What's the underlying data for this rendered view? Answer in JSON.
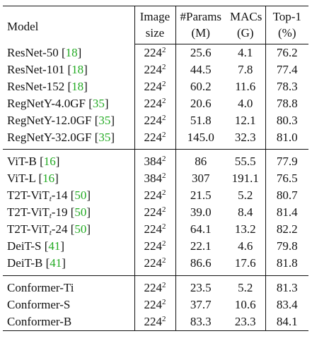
{
  "headers": {
    "model": "Model",
    "size": [
      "Image",
      "size"
    ],
    "params": [
      "#Params",
      "(M)"
    ],
    "macs": [
      "MACs",
      "(G)"
    ],
    "top1": [
      "Top-1",
      "(%)"
    ]
  },
  "groups": [
    [
      {
        "name": "ResNet-50",
        "sub": "",
        "suffix": "",
        "cite": "18",
        "res": "224",
        "params": "25.6",
        "macs": "4.1",
        "top1": "76.2"
      },
      {
        "name": "ResNet-101",
        "sub": "",
        "suffix": "",
        "cite": "18",
        "res": "224",
        "params": "44.5",
        "macs": "7.8",
        "top1": "77.4"
      },
      {
        "name": "ResNet-152",
        "sub": "",
        "suffix": "",
        "cite": "18",
        "res": "224",
        "params": "60.2",
        "macs": "11.6",
        "top1": "78.3"
      },
      {
        "name": "RegNetY-4.0GF",
        "sub": "",
        "suffix": "",
        "cite": "35",
        "res": "224",
        "params": "20.6",
        "macs": "4.0",
        "top1": "78.8"
      },
      {
        "name": "RegNetY-12.0GF",
        "sub": "",
        "suffix": "",
        "cite": "35",
        "res": "224",
        "params": "51.8",
        "macs": "12.1",
        "top1": "80.3"
      },
      {
        "name": "RegNetY-32.0GF",
        "sub": "",
        "suffix": "",
        "cite": "35",
        "res": "224",
        "params": "145.0",
        "macs": "32.3",
        "top1": "81.0"
      }
    ],
    [
      {
        "name": "ViT-B",
        "sub": "",
        "suffix": "",
        "cite": "16",
        "res": "384",
        "params": "86",
        "macs": "55.5",
        "top1": "77.9"
      },
      {
        "name": "ViT-L",
        "sub": "",
        "suffix": "",
        "cite": "16",
        "res": "384",
        "params": "307",
        "macs": "191.1",
        "top1": "76.5"
      },
      {
        "name": "T2T-ViT",
        "sub": "t",
        "suffix": "-14",
        "cite": "50",
        "res": "224",
        "params": "21.5",
        "macs": "5.2",
        "top1": "80.7"
      },
      {
        "name": "T2T-ViT",
        "sub": "t",
        "suffix": "-19",
        "cite": "50",
        "res": "224",
        "params": "39.0",
        "macs": "8.4",
        "top1": "81.4"
      },
      {
        "name": "T2T-ViT",
        "sub": "t",
        "suffix": "-24",
        "cite": "50",
        "res": "224",
        "params": "64.1",
        "macs": "13.2",
        "top1": "82.2"
      },
      {
        "name": "DeiT-S",
        "sub": "",
        "suffix": "",
        "cite": "41",
        "res": "224",
        "params": "22.1",
        "macs": "4.6",
        "top1": "79.8"
      },
      {
        "name": "DeiT-B",
        "sub": "",
        "suffix": "",
        "cite": "41",
        "res": "224",
        "params": "86.6",
        "macs": "17.6",
        "top1": "81.8"
      }
    ],
    [
      {
        "name": "Conformer-Ti",
        "sub": "",
        "suffix": "",
        "cite": "",
        "res": "224",
        "params": "23.5",
        "macs": "5.2",
        "top1": "81.3"
      },
      {
        "name": "Conformer-S",
        "sub": "",
        "suffix": "",
        "cite": "",
        "res": "224",
        "params": "37.7",
        "macs": "10.6",
        "top1": "83.4"
      },
      {
        "name": "Conformer-B",
        "sub": "",
        "suffix": "",
        "cite": "",
        "res": "224",
        "params": "83.3",
        "macs": "23.3",
        "top1": "84.1"
      }
    ]
  ],
  "res_exponent": "2",
  "colors": {
    "citation": "#22aa22",
    "text": "#111111"
  }
}
